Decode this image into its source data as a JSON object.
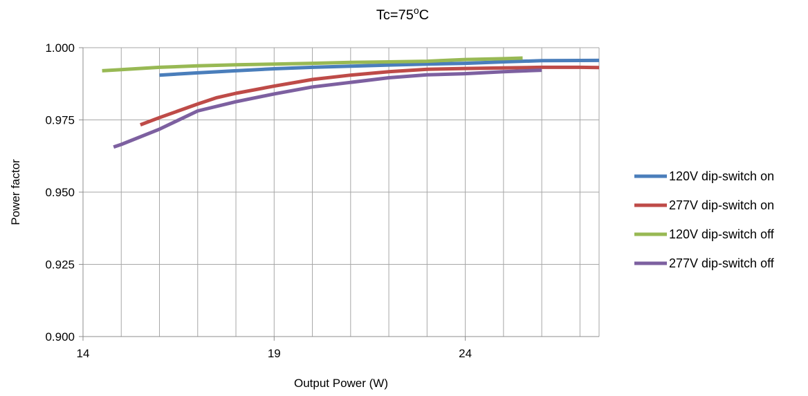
{
  "chart_data": {
    "type": "line",
    "title": "Tc=75",
    "title_superscript": "o",
    "title_suffix": "C",
    "xlabel": "Output Power (W)",
    "ylabel": "Power factor",
    "xlim": [
      14,
      27.5
    ],
    "ylim": [
      0.9,
      1.0
    ],
    "x_ticks": [
      14,
      19,
      24
    ],
    "y_ticks": [
      0.9,
      0.925,
      0.95,
      0.975,
      1.0
    ],
    "y_tick_labels": [
      "0.900",
      "0.925",
      "0.950",
      "0.975",
      "1.000"
    ],
    "x_gridlines": [
      14,
      15,
      16,
      17,
      18,
      19,
      20,
      21,
      22,
      23,
      24,
      25,
      26,
      27,
      27.5
    ],
    "grid": true,
    "legend_position": "right",
    "series": [
      {
        "name": "120V dip-switch on",
        "color": "#4a7ebb",
        "points": [
          [
            16.0,
            0.9905
          ],
          [
            17.0,
            0.9913
          ],
          [
            18.0,
            0.992
          ],
          [
            19.0,
            0.9927
          ],
          [
            20.0,
            0.9932
          ],
          [
            21.0,
            0.9936
          ],
          [
            22.0,
            0.994
          ],
          [
            23.0,
            0.9943
          ],
          [
            24.0,
            0.9946
          ],
          [
            25.0,
            0.9951
          ],
          [
            26.0,
            0.9955
          ],
          [
            27.5,
            0.9956
          ]
        ]
      },
      {
        "name": "277V dip-switch on",
        "color": "#be4b48",
        "points": [
          [
            15.5,
            0.9733
          ],
          [
            16.0,
            0.9758
          ],
          [
            17.0,
            0.9805
          ],
          [
            17.5,
            0.9827
          ],
          [
            18.0,
            0.9842
          ],
          [
            19.0,
            0.9867
          ],
          [
            20.0,
            0.989
          ],
          [
            21.0,
            0.9905
          ],
          [
            22.0,
            0.9917
          ],
          [
            23.0,
            0.9925
          ],
          [
            24.0,
            0.9928
          ],
          [
            25.0,
            0.993
          ],
          [
            26.0,
            0.9932
          ],
          [
            27.0,
            0.9932
          ],
          [
            27.5,
            0.9931
          ]
        ]
      },
      {
        "name": "120V dip-switch off",
        "color": "#98b954",
        "points": [
          [
            14.5,
            0.992
          ],
          [
            15.0,
            0.9924
          ],
          [
            16.0,
            0.9932
          ],
          [
            17.0,
            0.9937
          ],
          [
            18.0,
            0.9941
          ],
          [
            19.0,
            0.9943
          ],
          [
            20.0,
            0.9946
          ],
          [
            21.0,
            0.9949
          ],
          [
            22.0,
            0.9951
          ],
          [
            23.0,
            0.9953
          ],
          [
            24.0,
            0.9959
          ],
          [
            25.0,
            0.9962
          ],
          [
            25.5,
            0.9964
          ]
        ]
      },
      {
        "name": "277V dip-switch off",
        "color": "#7d60a0",
        "points": [
          [
            14.8,
            0.9656
          ],
          [
            15.0,
            0.9665
          ],
          [
            16.0,
            0.9718
          ],
          [
            17.0,
            0.9781
          ],
          [
            18.0,
            0.9813
          ],
          [
            19.0,
            0.984
          ],
          [
            20.0,
            0.9864
          ],
          [
            21.0,
            0.988
          ],
          [
            22.0,
            0.9896
          ],
          [
            23.0,
            0.9906
          ],
          [
            24.0,
            0.991
          ],
          [
            25.0,
            0.9917
          ],
          [
            26.0,
            0.9922
          ]
        ]
      }
    ]
  }
}
